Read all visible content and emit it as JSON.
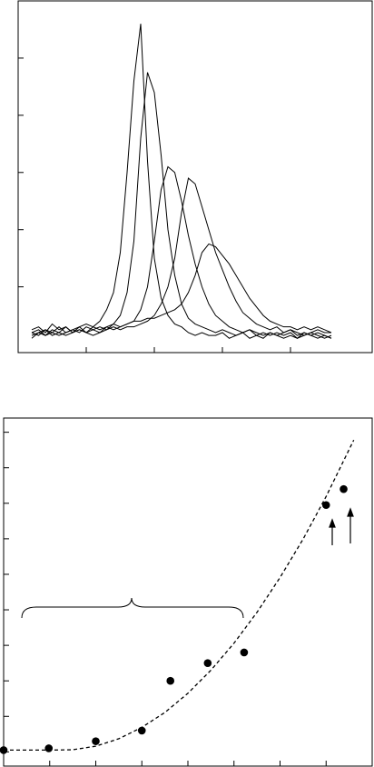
{
  "chart_data": [
    {
      "type": "line",
      "color": "#000000",
      "xlim": [
        0,
        5.2
      ],
      "ylim": [
        -0.15,
        6
      ],
      "xticks": [
        1,
        2,
        3,
        4
      ],
      "yticks": [
        1,
        2,
        3,
        4,
        5
      ],
      "x": [
        0.2,
        0.3,
        0.4,
        0.5,
        0.6,
        0.7,
        0.8,
        0.9,
        1.0,
        1.1,
        1.2,
        1.3,
        1.4,
        1.5,
        1.6,
        1.7,
        1.8,
        1.9,
        2.0,
        2.1,
        2.2,
        2.3,
        2.4,
        2.5,
        2.6,
        2.7,
        2.8,
        2.9,
        3.0,
        3.1,
        3.2,
        3.3,
        3.4,
        3.5,
        3.6,
        3.7,
        3.8,
        3.9,
        4.0,
        4.1,
        4.2,
        4.3,
        4.4,
        4.5,
        4.6
      ],
      "series": [
        {
          "values": [
            0.25,
            0.3,
            0.2,
            0.35,
            0.25,
            0.3,
            0.2,
            0.3,
            0.35,
            0.3,
            0.4,
            0.6,
            0.9,
            1.6,
            3.0,
            4.6,
            5.6,
            3.2,
            1.5,
            0.8,
            0.5,
            0.35,
            0.3,
            0.2,
            0.15,
            0.2,
            0.15,
            0.15,
            0.2,
            0.1,
            0.15,
            0.2,
            0.1,
            0.15,
            0.1,
            0.2,
            0.15,
            0.1,
            0.15,
            0.1,
            0.2,
            0.15,
            0.1,
            0.15,
            0.1
          ]
        },
        {
          "values": [
            0.15,
            0.2,
            0.25,
            0.15,
            0.2,
            0.3,
            0.2,
            0.25,
            0.2,
            0.3,
            0.25,
            0.3,
            0.35,
            0.5,
            0.9,
            1.8,
            3.6,
            4.75,
            4.4,
            3.3,
            2.0,
            1.2,
            0.7,
            0.45,
            0.35,
            0.3,
            0.25,
            0.2,
            0.25,
            0.2,
            0.15,
            0.2,
            0.25,
            0.15,
            0.2,
            0.15,
            0.2,
            0.15,
            0.2,
            0.1,
            0.15,
            0.2,
            0.15,
            0.1,
            0.15
          ]
        },
        {
          "values": [
            0.2,
            0.15,
            0.25,
            0.2,
            0.15,
            0.2,
            0.25,
            0.2,
            0.3,
            0.25,
            0.2,
            0.3,
            0.25,
            0.3,
            0.35,
            0.4,
            0.6,
            1.0,
            1.8,
            2.7,
            3.1,
            3.0,
            2.5,
            1.9,
            1.4,
            1.0,
            0.7,
            0.5,
            0.4,
            0.3,
            0.25,
            0.2,
            0.25,
            0.2,
            0.15,
            0.2,
            0.15,
            0.2,
            0.25,
            0.15,
            0.2,
            0.15,
            0.2,
            0.15,
            0.1
          ]
        },
        {
          "values": [
            0.1,
            0.2,
            0.15,
            0.25,
            0.2,
            0.15,
            0.2,
            0.25,
            0.2,
            0.15,
            0.2,
            0.25,
            0.3,
            0.25,
            0.3,
            0.3,
            0.35,
            0.4,
            0.5,
            0.7,
            1.0,
            1.5,
            2.3,
            2.9,
            2.8,
            2.4,
            2.0,
            1.6,
            1.3,
            1.0,
            0.75,
            0.55,
            0.45,
            0.35,
            0.3,
            0.25,
            0.3,
            0.2,
            0.25,
            0.2,
            0.15,
            0.2,
            0.25,
            0.2,
            0.2
          ]
        },
        {
          "values": [
            0.2,
            0.25,
            0.15,
            0.2,
            0.3,
            0.2,
            0.25,
            0.3,
            0.2,
            0.25,
            0.3,
            0.25,
            0.35,
            0.3,
            0.35,
            0.4,
            0.4,
            0.45,
            0.45,
            0.5,
            0.55,
            0.6,
            0.7,
            0.9,
            1.2,
            1.6,
            1.75,
            1.7,
            1.55,
            1.4,
            1.2,
            1.0,
            0.8,
            0.65,
            0.5,
            0.4,
            0.35,
            0.3,
            0.3,
            0.25,
            0.3,
            0.25,
            0.3,
            0.25,
            0.2
          ]
        }
      ]
    },
    {
      "type": "scatter",
      "color": "#000000",
      "xlim": [
        0,
        8
      ],
      "ylim": [
        -0.4,
        9.4
      ],
      "xticks": [
        1,
        2,
        3,
        4,
        5,
        6,
        7
      ],
      "yticks": [
        0,
        1,
        2,
        3,
        4,
        5,
        6,
        7,
        8,
        9
      ],
      "series": [
        {
          "x": [
            0,
            0.98,
            2.0,
            3.0,
            3.62,
            4.43,
            5.22,
            7.0,
            7.38
          ],
          "values": [
            0.05,
            0.1,
            0.3,
            0.6,
            2.0,
            2.5,
            2.8,
            6.95,
            7.4
          ]
        },
        {
          "dashed": true,
          "x": [
            0,
            0.5,
            1,
            1.5,
            2,
            2.5,
            3,
            3.5,
            4,
            4.5,
            5,
            5.5,
            6,
            6.5,
            7,
            7.6
          ],
          "values": [
            0.05,
            0.05,
            0.05,
            0.06,
            0.16,
            0.37,
            0.69,
            1.11,
            1.65,
            2.3,
            3.06,
            3.93,
            4.91,
            5.99,
            7.19,
            8.78
          ]
        }
      ]
    }
  ]
}
